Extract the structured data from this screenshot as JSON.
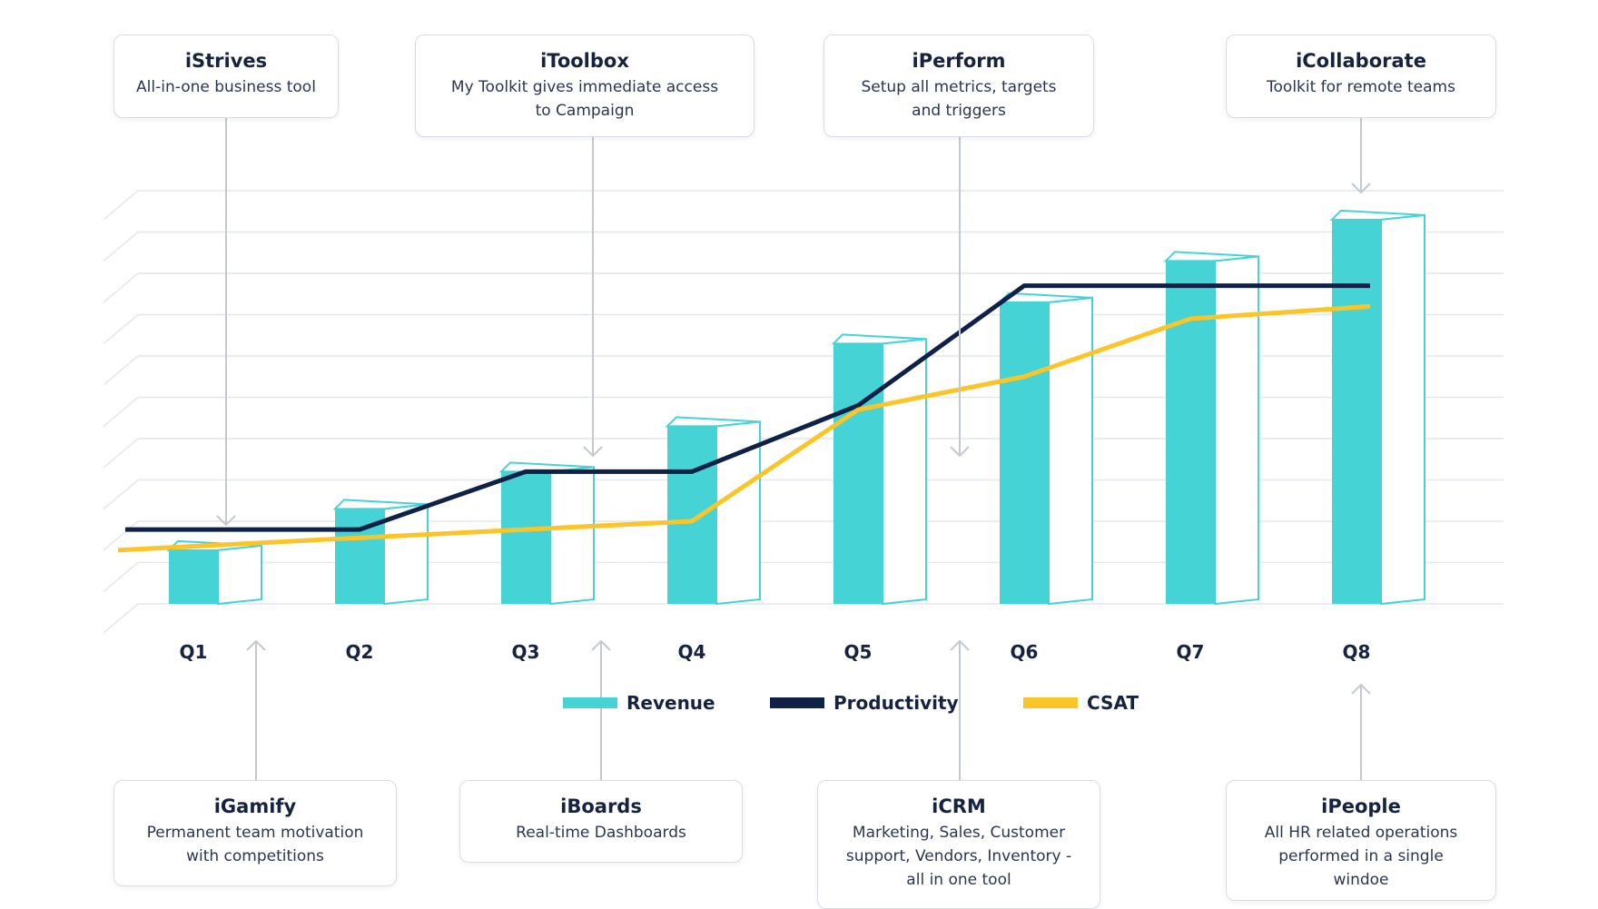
{
  "colors": {
    "revenue": "#45d3d5",
    "productivity": "#0f2146",
    "csat": "#fbc52a",
    "grid": "#e4e7eb",
    "arrow": "#c4c9d1"
  },
  "icons": {
    "arrow": "down-arrow-icon / up-arrow-icon"
  },
  "cards_top": [
    {
      "id": "istrives",
      "title": "iStrives",
      "desc": [
        "All-in-one business tool"
      ]
    },
    {
      "id": "itoolbox",
      "title": "iToolbox",
      "desc": [
        "My Toolkit gives immediate access",
        "to Campaign"
      ]
    },
    {
      "id": "iperform",
      "title": "iPerform",
      "desc": [
        "Setup all metrics, targets",
        "and triggers"
      ]
    },
    {
      "id": "icollaborate",
      "title": "iCollaborate",
      "desc": [
        "Toolkit for remote teams"
      ]
    }
  ],
  "cards_bottom": [
    {
      "id": "igamify",
      "title": "iGamify",
      "desc": [
        "Permanent team motivation",
        "with competitions"
      ]
    },
    {
      "id": "iboards",
      "title": "iBoards",
      "desc": [
        "Real-time Dashboards"
      ]
    },
    {
      "id": "icrm",
      "title": "iCRM",
      "desc": [
        "Marketing, Sales, Customer",
        "support, Vendors, Inventory -",
        "all in one tool"
      ]
    },
    {
      "id": "ipeople",
      "title": "iPeople",
      "desc": [
        "All HR related operations",
        "performed in a single",
        "windoe"
      ]
    }
  ],
  "chart_data": {
    "type": "bar",
    "title": "",
    "xlabel": "",
    "ylabel": "",
    "categories": [
      "Q1",
      "Q2",
      "Q3",
      "Q4",
      "Q5",
      "Q6",
      "Q7",
      "Q8"
    ],
    "ylim": [
      0,
      10
    ],
    "grid": true,
    "legend_position": "bottom-center",
    "series": [
      {
        "name": "Revenue",
        "type": "bar",
        "values": [
          1.3,
          2.3,
          3.2,
          4.3,
          6.3,
          7.3,
          8.3,
          9.3
        ]
      },
      {
        "name": "Productivity",
        "type": "line",
        "values": [
          1.8,
          1.8,
          3.2,
          3.2,
          4.8,
          7.7,
          7.7,
          7.7
        ]
      },
      {
        "name": "CSAT",
        "type": "line",
        "values": [
          1.3,
          1.6,
          1.8,
          2.0,
          4.7,
          5.5,
          6.9,
          7.2
        ]
      }
    ]
  }
}
